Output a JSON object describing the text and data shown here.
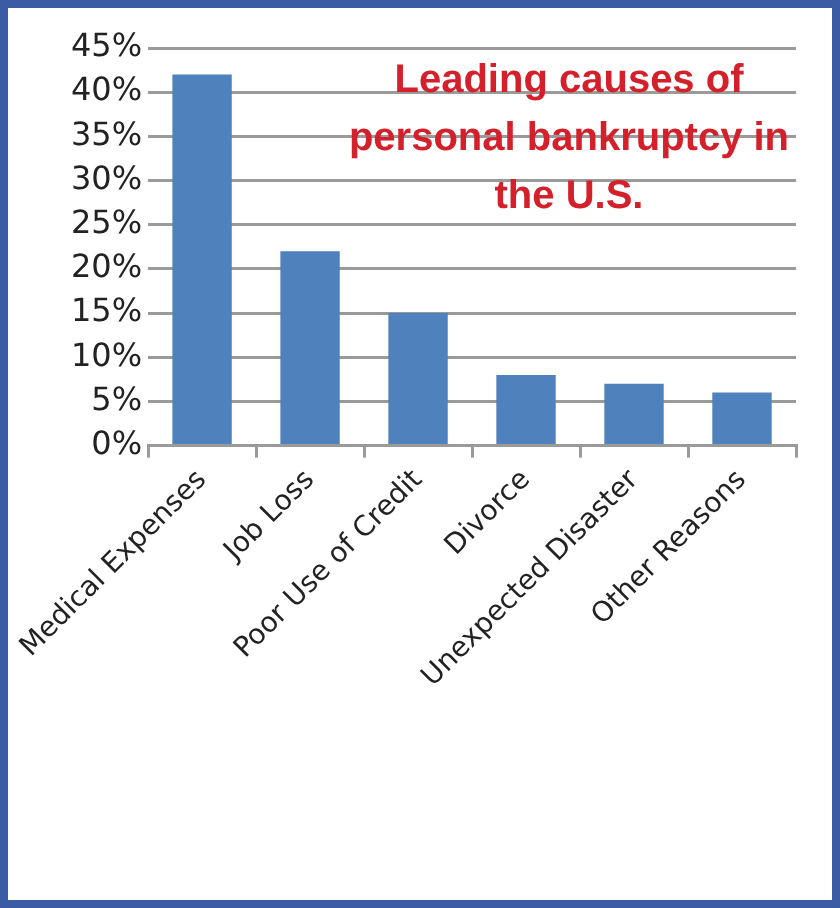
{
  "chart_data": {
    "type": "bar",
    "title": "Leading causes of personal bankruptcy in the U.S.",
    "categories": [
      "Medical Expenses",
      "Job Loss",
      "Poor Use of Credit",
      "Divorce",
      "Unexpected Disaster",
      "Other Reasons"
    ],
    "values": [
      42,
      22,
      15,
      8,
      7,
      6
    ],
    "color": "#4f81bd",
    "ylim": [
      0,
      45
    ],
    "yticks": [
      {
        "value": 0,
        "label": "0%"
      },
      {
        "value": 5,
        "label": "5%"
      },
      {
        "value": 10,
        "label": "10%"
      },
      {
        "value": 15,
        "label": "15%"
      },
      {
        "value": 20,
        "label": "20%"
      },
      {
        "value": 25,
        "label": "25%"
      },
      {
        "value": 30,
        "label": "30%"
      },
      {
        "value": 35,
        "label": "35%"
      },
      {
        "value": 40,
        "label": "40%"
      },
      {
        "value": 45,
        "label": "45%"
      }
    ],
    "grid": "y"
  }
}
